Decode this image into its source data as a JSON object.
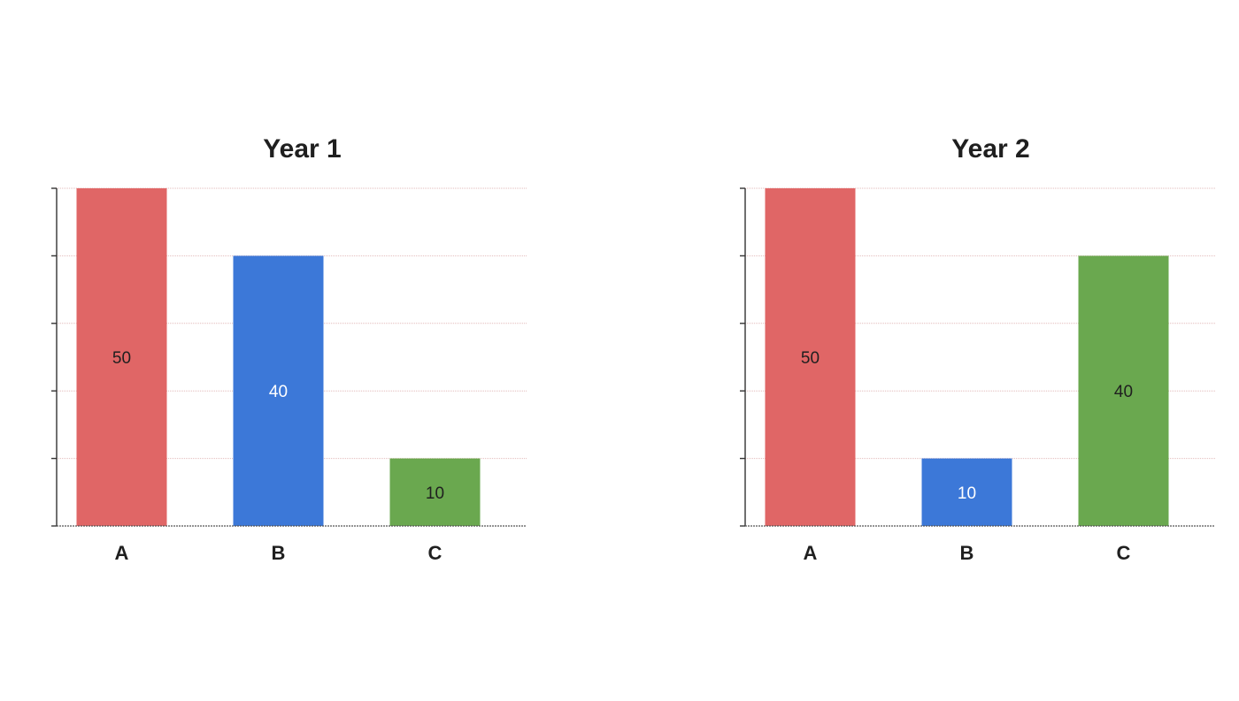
{
  "chart_data": [
    {
      "type": "bar",
      "title": "Year 1",
      "categories": [
        "A",
        "B",
        "C"
      ],
      "values": [
        50,
        40,
        10
      ],
      "value_labels": [
        "50",
        "40",
        "10"
      ],
      "colors": [
        "#e06666",
        "#3c78d8",
        "#6aa84f"
      ],
      "label_colors": [
        "#1f1f1f",
        "#ffffff",
        "#1f1f1f"
      ],
      "xlabel": "",
      "ylabel": "",
      "ylim": [
        0,
        50
      ],
      "grid": true,
      "y_tick_labels_shown": false
    },
    {
      "type": "bar",
      "title": "Year 2",
      "categories": [
        "A",
        "B",
        "C"
      ],
      "values": [
        50,
        10,
        40
      ],
      "value_labels": [
        "50",
        "10",
        "40"
      ],
      "colors": [
        "#e06666",
        "#3c78d8",
        "#6aa84f"
      ],
      "label_colors": [
        "#1f1f1f",
        "#ffffff",
        "#1f1f1f"
      ],
      "xlabel": "",
      "ylabel": "",
      "ylim": [
        0,
        50
      ],
      "grid": true,
      "y_tick_labels_shown": false
    }
  ]
}
